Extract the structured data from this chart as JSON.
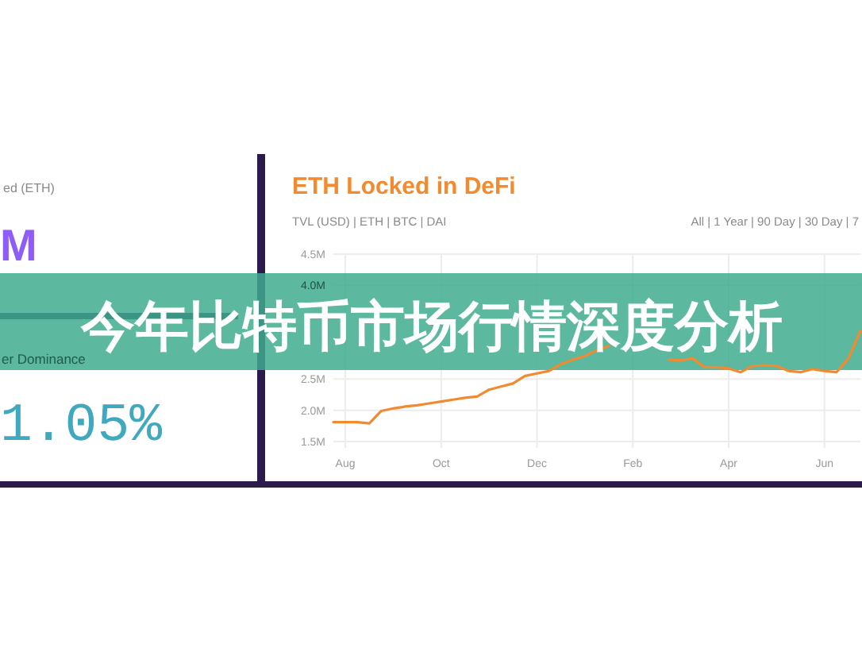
{
  "chart_data": [
    {
      "type": "other",
      "annotations": [
        "ed (ETH)",
        "M",
        "er Dominance",
        "1.05%"
      ]
    },
    {
      "type": "line",
      "title": "ETH Locked in DeFi",
      "annotations": [
        "TVL (USD) | ETH | BTC | DAI",
        "All | 1 Year | 90 Day | 30 Day | 7",
        "今年比特币市场行情深度分析"
      ],
      "categories": [
        null,
        "Aug",
        null,
        null,
        null,
        null,
        null,
        null,
        null,
        "Oct",
        null,
        null,
        null,
        null,
        null,
        null,
        null,
        "Dec",
        null,
        null,
        null,
        null,
        null,
        null,
        null,
        "Feb",
        null,
        null,
        null,
        null,
        null,
        null,
        null,
        "Apr",
        null,
        null,
        null,
        null,
        null,
        null,
        null,
        "Jun",
        null,
        null,
        null
      ],
      "values": [
        1.81,
        1.81,
        1.81,
        1.79,
        1.99,
        2.03,
        2.06,
        2.08,
        2.11,
        2.14,
        2.17,
        2.2,
        2.22,
        2.33,
        2.38,
        2.43,
        2.55,
        2.59,
        2.63,
        2.74,
        2.81,
        2.87,
        2.96,
        3.03,
        null,
        null,
        null,
        null,
        2.81,
        2.8,
        2.83,
        2.69,
        2.69,
        2.67,
        2.61,
        2.71,
        2.72,
        2.71,
        2.63,
        2.61,
        2.66,
        2.63,
        2.61,
        2.83,
        3.27
      ],
      "color": "#f28a30",
      "ylim": [
        1.5,
        4.5
      ],
      "yticks": [
        {
          "value": 1.5,
          "label": "1.5M"
        },
        {
          "value": 2,
          "label": "2.0M"
        },
        {
          "value": 2.5,
          "label": "2.5M"
        },
        {
          "value": 4,
          "label": "4.0M"
        },
        {
          "value": 4.5,
          "label": "4.5M"
        }
      ],
      "grid": true
    }
  ]
}
